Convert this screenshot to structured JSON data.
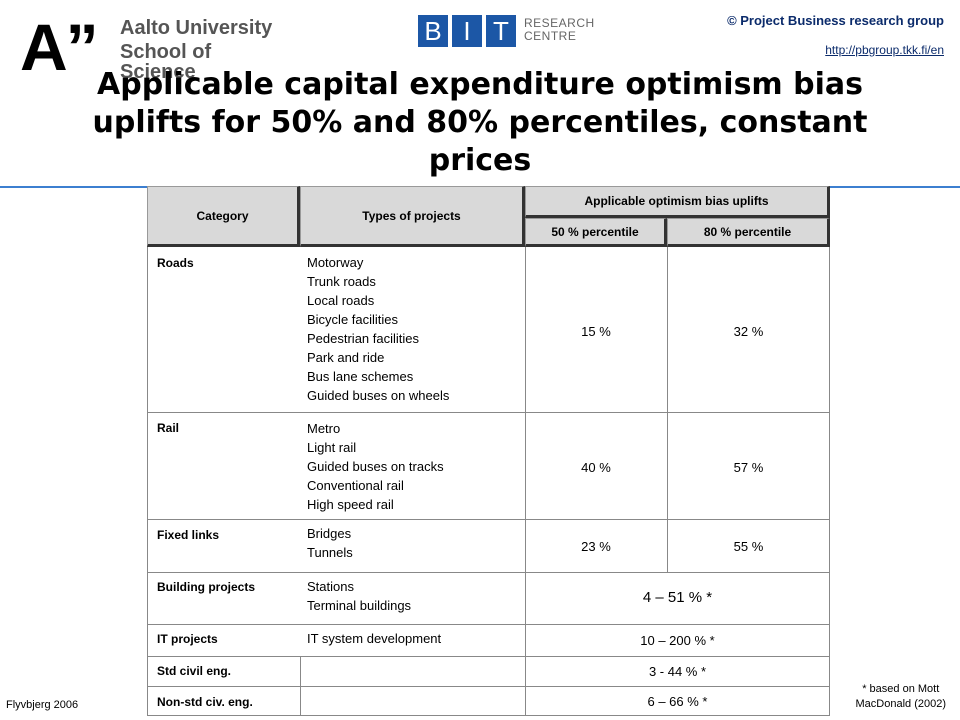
{
  "header": {
    "logo_quote": "A”",
    "logo_line1": "Aalto University",
    "logo_line2": "School of Science",
    "bit_letters": [
      "B",
      "I",
      "T"
    ],
    "bit_tag_line1": "RESEARCH",
    "bit_tag_line2": "CENTRE",
    "group": "©  Project Business research group",
    "link": "http://pbgroup.tkk.fi/en"
  },
  "title": "Applicable capital expenditure optimism bias uplifts for 50% and 80% percentiles, constant prices",
  "table": {
    "col_category": "Category",
    "col_types": "Types of projects",
    "col_uplifts": "Applicable optimism bias uplifts",
    "col_p50": "50 % percentile",
    "col_p80": "80 % percentile",
    "rows": [
      {
        "category": "Roads",
        "types": [
          "Motorway",
          "Trunk roads",
          "Local roads",
          "Bicycle facilities",
          "Pedestrian facilities",
          "Park and ride",
          "Bus lane schemes",
          "Guided buses on wheels"
        ],
        "p50": "15 %",
        "p80": "32 %"
      },
      {
        "category": "Rail",
        "types": [
          "Metro",
          "Light rail",
          "Guided buses on tracks",
          "Conventional rail",
          "High speed rail"
        ],
        "p50": "40 %",
        "p80": "57 %"
      },
      {
        "category": "Fixed links",
        "types": [
          "Bridges",
          "Tunnels"
        ],
        "p50": "23 %",
        "p80": "55 %"
      },
      {
        "category": "Building projects",
        "types": [
          "Stations",
          "Terminal buildings"
        ],
        "range": "4 – 51 % *"
      },
      {
        "category": "IT projects",
        "types": [
          "IT system development"
        ],
        "range": "10 – 200 % *"
      },
      {
        "category": "Std civil eng.",
        "types": [],
        "range": "3 - 44 % *"
      },
      {
        "category": "Non-std civ. eng.",
        "types": [],
        "range": "6 – 66 % *"
      }
    ]
  },
  "footer": {
    "source_left": "Flyvbjerg 2006",
    "note_line1": "* based on Mott",
    "note_line2": "MacDonald (2002)"
  },
  "colors": {
    "accent_blue": "#1c57a6",
    "rule": "#3c7fd0",
    "header_gray": "#d9d9d9"
  }
}
